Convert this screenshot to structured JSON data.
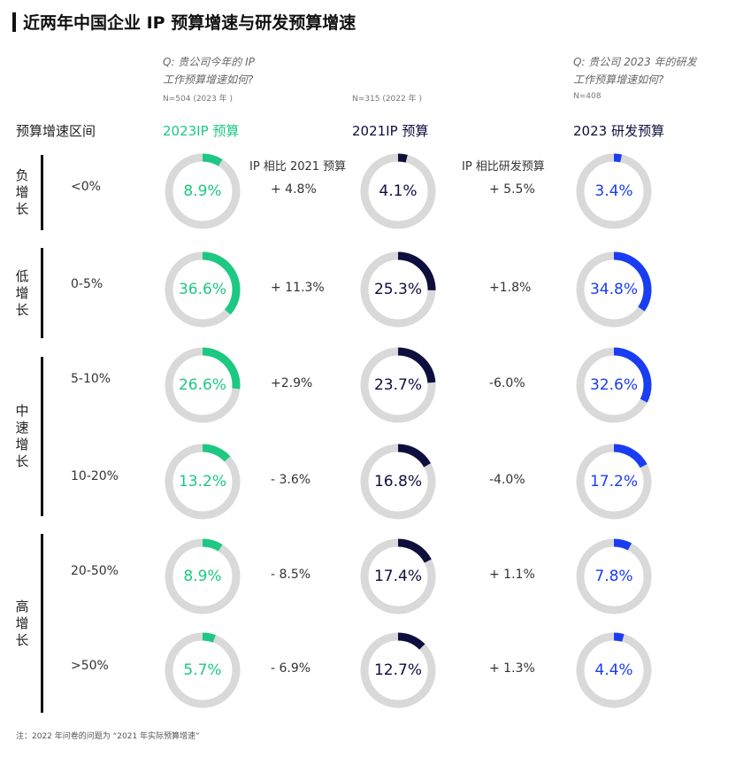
{
  "title": "近两年中国企业 IP 预算增速与研发预算增速",
  "question_ip": [
    "Q: 贵公司今年的 IP",
    "工作预算增速如何?"
  ],
  "question_rd": [
    "Q: 贵公司 2023 年的研发",
    "工作预算增速如何?"
  ],
  "n_2023": "N=504 (2023 年 )",
  "n_2022": "N=315 (2022 年 )",
  "n_rd": "N=408",
  "row_header": "预算增速区间",
  "compare_a_label": "IP 相比 2021 预算",
  "compare_b_label": "IP 相比研发预算",
  "note": "注：2022 年问卷的问题为 “2021 年实际预算增速”",
  "colors": {
    "ip2023": "#1dc883",
    "ip2021": "#0e0f3e",
    "rd2023": "#1a3cf2",
    "track": "#d9d9d9"
  },
  "chart_data": {
    "type": "donut-grid",
    "series": [
      {
        "name": "2023IP 预算",
        "key": "ip2023",
        "values": [
          8.9,
          36.6,
          26.6,
          13.2,
          8.9,
          5.7
        ]
      },
      {
        "name": "2021IP 预算",
        "key": "ip2021",
        "values": [
          4.1,
          25.3,
          23.7,
          16.8,
          17.4,
          12.7
        ]
      },
      {
        "name": "2023 研发预算",
        "key": "rd2023",
        "values": [
          3.4,
          34.8,
          32.6,
          17.2,
          7.8,
          4.4
        ]
      }
    ],
    "categories": [
      "<0%",
      "0-5%",
      "5-10%",
      "10-20%",
      "20-50%",
      ">50%"
    ],
    "value_labels": [
      [
        "8.9%",
        "36.6%",
        "26.6%",
        "13.2%",
        "8.9%",
        "5.7%"
      ],
      [
        "4.1%",
        "25.3%",
        "23.7%",
        "16.8%",
        "17.4%",
        "12.7%"
      ],
      [
        "3.4%",
        "34.8%",
        "32.6%",
        "17.2%",
        "7.8%",
        "4.4%"
      ]
    ],
    "compare_a": [
      "+ 4.8%",
      "+ 11.3%",
      "+2.9%",
      "- 3.6%",
      "- 8.5%",
      "- 6.9%"
    ],
    "compare_b": [
      "+ 5.5%",
      "+1.8%",
      "-6.0%",
      "-4.0%",
      "+ 1.1%",
      "+ 1.3%"
    ],
    "groups": [
      {
        "label": "负增长",
        "rows": [
          0
        ]
      },
      {
        "label": "低增长",
        "rows": [
          1
        ]
      },
      {
        "label": "中速增长",
        "rows": [
          2,
          3
        ]
      },
      {
        "label": "高增长",
        "rows": [
          4,
          5
        ]
      }
    ]
  }
}
